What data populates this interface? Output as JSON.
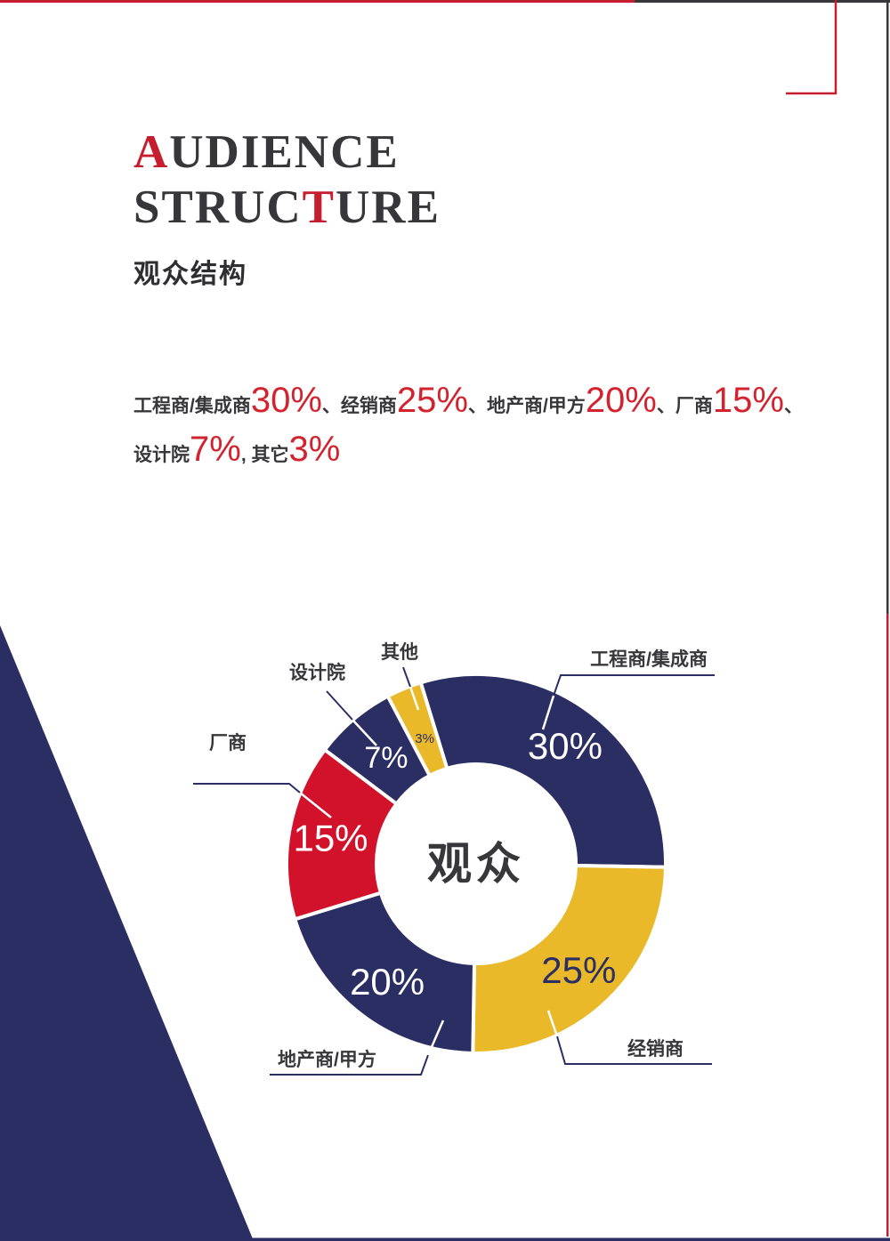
{
  "header": {
    "title_lines": [
      {
        "segments": [
          {
            "text": "A",
            "red": true
          },
          {
            "text": "UDIENCE",
            "red": false
          }
        ]
      },
      {
        "segments": [
          {
            "text": "STRUC",
            "red": false
          },
          {
            "text": "T",
            "red": true
          },
          {
            "text": "URE",
            "red": false
          }
        ]
      }
    ],
    "subtitle": "观众结构"
  },
  "summary": {
    "lines": [
      {
        "segments": [
          {
            "text": "工程商/集成商",
            "big": false
          },
          {
            "text": "30%",
            "big": true
          },
          {
            "text": "、经销商",
            "big": false
          },
          {
            "text": "25%",
            "big": true
          },
          {
            "text": "、地产商/甲方",
            "big": false
          },
          {
            "text": "20%",
            "big": true
          },
          {
            "text": "、厂商",
            "big": false
          },
          {
            "text": "15%",
            "big": true
          },
          {
            "text": "、",
            "big": false
          }
        ]
      },
      {
        "segments": [
          {
            "text": "设计院",
            "big": false
          },
          {
            "text": "7%",
            "big": true
          },
          {
            "text": ", 其它",
            "big": false
          },
          {
            "text": "3%",
            "big": true
          }
        ]
      }
    ]
  },
  "chart_data": {
    "type": "pie",
    "variant": "donut",
    "title": "观众",
    "center_label": "观众",
    "start_angle_deg": -17,
    "legend_position": "callouts",
    "slices": [
      {
        "label": "工程商/集成商",
        "value": 30,
        "percent_label": "30%",
        "color": "#2b2e63"
      },
      {
        "label": "经销商",
        "value": 25,
        "percent_label": "25%",
        "color": "#e9b929"
      },
      {
        "label": "地产商/甲方",
        "value": 20,
        "percent_label": "20%",
        "color": "#2b2e63"
      },
      {
        "label": "厂商",
        "value": 15,
        "percent_label": "15%",
        "color": "#d2122b"
      },
      {
        "label": "设计院",
        "value": 7,
        "percent_label": "7%",
        "color": "#2b2e63"
      },
      {
        "label": "其他",
        "value": 3,
        "percent_label": "3%",
        "color": "#e9b929"
      }
    ]
  },
  "colors": {
    "navy": "#2b2e63",
    "yellow": "#e9b929",
    "red": "#d2122b",
    "dark": "#37373a",
    "red_accent": "#c51e2e",
    "white": "#ffffff"
  }
}
